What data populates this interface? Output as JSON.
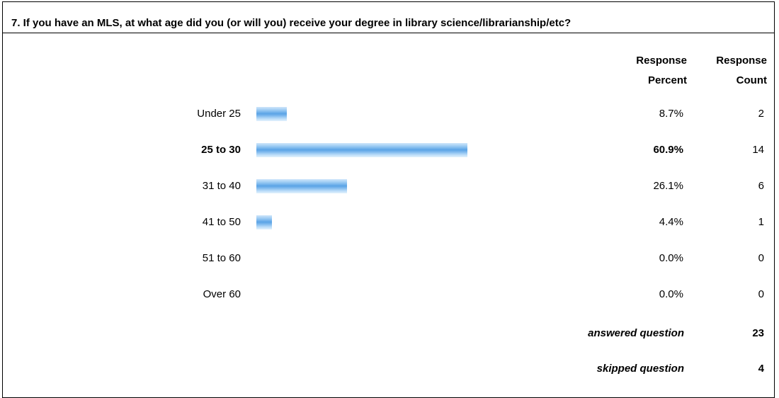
{
  "title": "7. If you have an MLS, at what age did you (or will you) receive your degree in library science/librarianship/etc?",
  "headers": {
    "percent": [
      "Response",
      "Percent"
    ],
    "count": [
      "Response",
      "Count"
    ]
  },
  "chart_data": {
    "type": "bar",
    "orientation": "horizontal",
    "categories": [
      "Under 25",
      "25 to 30",
      "31 to 40",
      "41 to 50",
      "51 to 60",
      "Over 60"
    ],
    "values": [
      8.7,
      60.9,
      26.1,
      4.4,
      0.0,
      0.0
    ],
    "percent_labels": [
      "8.7%",
      "60.9%",
      "26.1%",
      "4.4%",
      "0.0%",
      "0.0%"
    ],
    "counts": [
      "2",
      "14",
      "6",
      "1",
      "0",
      "0"
    ],
    "highlighted": "25 to 30",
    "bar_color": "#5aa3e6"
  },
  "footer": {
    "answered_label": "answered question",
    "answered_value": "23",
    "skipped_label": "skipped question",
    "skipped_value": "4"
  }
}
